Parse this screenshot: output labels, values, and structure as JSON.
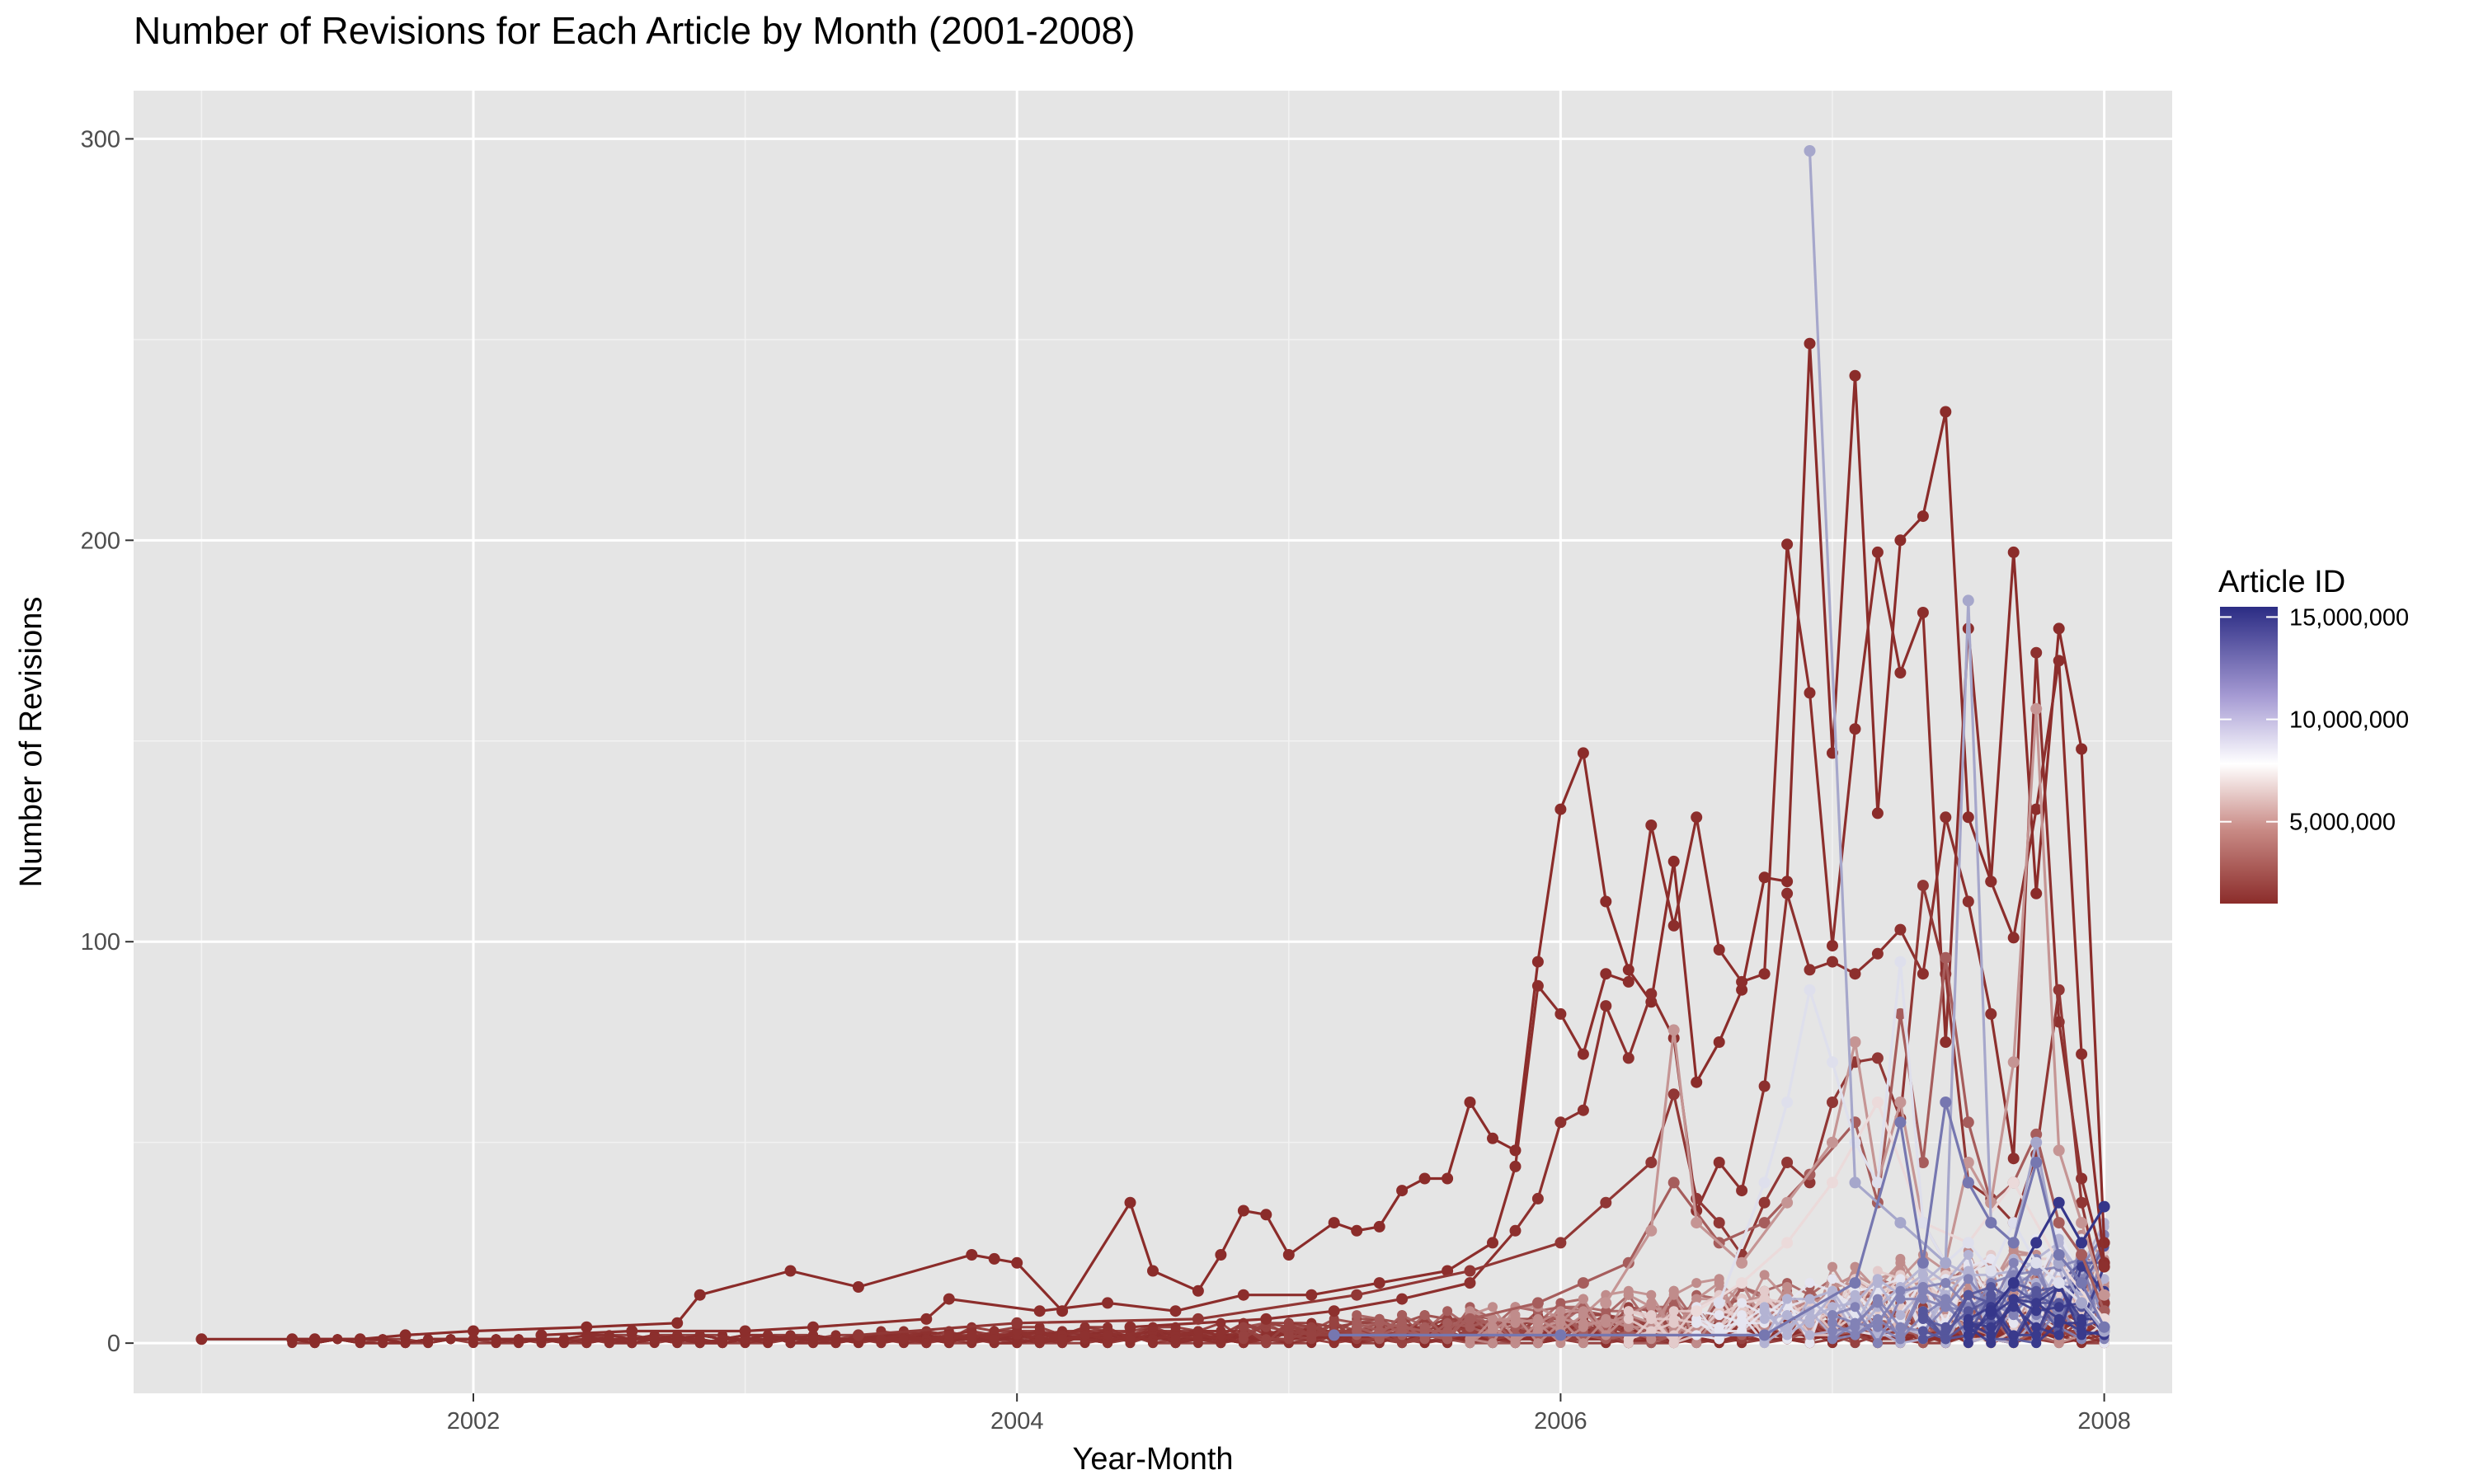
{
  "chart_data": {
    "type": "line",
    "title": "Number of Revisions for Each Article by Month (2001-2008)",
    "xlabel": "Year-Month",
    "ylabel": "Number of Revisions",
    "x_type": "date",
    "xlim": [
      "2000-10-01",
      "2008-04-01"
    ],
    "ylim": [
      -12.5,
      312
    ],
    "x_ticks": [
      "2002-01-01",
      "2004-01-01",
      "2006-01-01",
      "2008-01-01"
    ],
    "x_tick_labels": [
      "2002",
      "2004",
      "2006",
      "2008"
    ],
    "y_ticks": [
      0,
      100,
      200,
      300
    ],
    "y_tick_labels": [
      "0",
      "100",
      "200",
      "300"
    ],
    "panel_background": "#e5e5e5",
    "grid": true,
    "legend": {
      "title": "Article ID",
      "placement": "right",
      "type": "colorbar",
      "breaks": [
        5000000,
        10000000,
        15000000
      ],
      "break_labels": [
        "5,000,000",
        "10,000,000",
        "15,000,000"
      ],
      "range": [
        1000000,
        15500000
      ],
      "colors": [
        "#8b2c2a",
        "#ffffff",
        "#2b2c84"
      ]
    },
    "series": [
      {
        "id": 1100000,
        "points": [
          [
            "2001-01",
            "1"
          ],
          [
            "2001-05",
            "1"
          ],
          [
            "2001-06",
            "1"
          ],
          [
            "2001-08",
            "1"
          ],
          [
            "2001-10",
            "2"
          ],
          [
            "2002-01",
            "3"
          ],
          [
            "2002-06",
            "4"
          ],
          [
            "2002-10",
            "5"
          ],
          [
            "2002-11",
            "12"
          ],
          [
            "2003-03",
            "18"
          ],
          [
            "2003-06",
            "14"
          ],
          [
            "2003-11",
            "22"
          ],
          [
            "2003-12",
            "21"
          ],
          [
            "2004-01",
            "20"
          ],
          [
            "2004-03",
            "8"
          ],
          [
            "2004-06",
            "35"
          ],
          [
            "2004-07",
            "18"
          ],
          [
            "2004-09",
            "13"
          ],
          [
            "2004-10",
            "22"
          ],
          [
            "2004-11",
            "33"
          ],
          [
            "2004-12",
            "32"
          ],
          [
            "2005-01",
            "22"
          ],
          [
            "2005-03",
            "30"
          ],
          [
            "2005-04",
            "28"
          ],
          [
            "2005-05",
            "29"
          ],
          [
            "2005-06",
            "38"
          ],
          [
            "2005-07",
            "41"
          ],
          [
            "2005-08",
            "41"
          ],
          [
            "2005-09",
            "60"
          ],
          [
            "2005-10",
            "51"
          ],
          [
            "2005-11",
            "48"
          ],
          [
            "2005-12",
            "95"
          ],
          [
            "2006-01",
            "133"
          ],
          [
            "2006-02",
            "147"
          ],
          [
            "2006-03",
            "110"
          ],
          [
            "2006-04",
            "93"
          ],
          [
            "2006-05",
            "85"
          ],
          [
            "2006-06",
            "120"
          ],
          [
            "2006-07",
            "65"
          ],
          [
            "2006-08",
            "75"
          ],
          [
            "2006-09",
            "88"
          ],
          [
            "2006-10",
            "116"
          ],
          [
            "2006-11",
            "115"
          ],
          [
            "2006-12",
            "249"
          ],
          [
            "2007-01",
            "147"
          ],
          [
            "2007-02",
            "241"
          ],
          [
            "2007-03",
            "132"
          ],
          [
            "2007-04",
            "200"
          ],
          [
            "2007-05",
            "206"
          ],
          [
            "2007-06",
            "232"
          ],
          [
            "2007-07",
            "131"
          ],
          [
            "2007-08",
            "115"
          ],
          [
            "2007-09",
            "197"
          ],
          [
            "2007-10",
            "112"
          ],
          [
            "2007-11",
            "178"
          ],
          [
            "2007-12",
            "148"
          ],
          [
            "2008-01",
            "25"
          ]
        ]
      },
      {
        "id": 1300000,
        "points": [
          [
            "2002-04",
            "2"
          ],
          [
            "2002-08",
            "3"
          ],
          [
            "2003-01",
            "3"
          ],
          [
            "2003-04",
            "4"
          ],
          [
            "2003-09",
            "6"
          ],
          [
            "2003-10",
            "11"
          ],
          [
            "2004-02",
            "8"
          ],
          [
            "2004-05",
            "10"
          ],
          [
            "2004-08",
            "8"
          ],
          [
            "2004-11",
            "12"
          ],
          [
            "2005-02",
            "12"
          ],
          [
            "2005-05",
            "15"
          ],
          [
            "2005-08",
            "18"
          ],
          [
            "2005-10",
            "25"
          ],
          [
            "2005-11",
            "44"
          ],
          [
            "2005-12",
            "89"
          ],
          [
            "2006-01",
            "82"
          ],
          [
            "2006-02",
            "72"
          ],
          [
            "2006-03",
            "92"
          ],
          [
            "2006-04",
            "90"
          ],
          [
            "2006-05",
            "129"
          ],
          [
            "2006-06",
            "104"
          ],
          [
            "2006-07",
            "131"
          ],
          [
            "2006-08",
            "98"
          ],
          [
            "2006-09",
            "90"
          ],
          [
            "2006-10",
            "92"
          ],
          [
            "2006-11",
            "199"
          ],
          [
            "2006-12",
            "162"
          ],
          [
            "2007-01",
            "99"
          ],
          [
            "2007-02",
            "153"
          ],
          [
            "2007-03",
            "197"
          ],
          [
            "2007-04",
            "167"
          ],
          [
            "2007-05",
            "182"
          ],
          [
            "2007-06",
            "75"
          ],
          [
            "2007-07",
            "178"
          ],
          [
            "2007-08",
            "115"
          ],
          [
            "2007-09",
            "101"
          ],
          [
            "2007-10",
            "133"
          ],
          [
            "2007-11",
            "170"
          ],
          [
            "2007-12",
            "72"
          ],
          [
            "2008-01",
            "20"
          ]
        ]
      },
      {
        "id": 1500000,
        "points": [
          [
            "2004-06",
            "4"
          ],
          [
            "2004-12",
            "6"
          ],
          [
            "2005-03",
            "8"
          ],
          [
            "2005-06",
            "11"
          ],
          [
            "2005-09",
            "15"
          ],
          [
            "2005-11",
            "28"
          ],
          [
            "2005-12",
            "36"
          ],
          [
            "2006-01",
            "55"
          ],
          [
            "2006-02",
            "58"
          ],
          [
            "2006-03",
            "84"
          ],
          [
            "2006-04",
            "71"
          ],
          [
            "2006-05",
            "87"
          ],
          [
            "2006-06",
            "76"
          ],
          [
            "2006-07",
            "33"
          ],
          [
            "2006-08",
            "45"
          ],
          [
            "2006-09",
            "38"
          ],
          [
            "2006-10",
            "64"
          ],
          [
            "2006-11",
            "112"
          ],
          [
            "2006-12",
            "93"
          ],
          [
            "2007-01",
            "95"
          ],
          [
            "2007-02",
            "92"
          ],
          [
            "2007-03",
            "97"
          ],
          [
            "2007-04",
            "103"
          ],
          [
            "2007-05",
            "92"
          ],
          [
            "2007-06",
            "131"
          ],
          [
            "2007-07",
            "110"
          ],
          [
            "2007-08",
            "82"
          ],
          [
            "2007-09",
            "46"
          ],
          [
            "2007-10",
            "172"
          ],
          [
            "2007-11",
            "80"
          ],
          [
            "2007-12",
            "41"
          ],
          [
            "2008-01",
            "19"
          ]
        ]
      },
      {
        "id": 2000000,
        "points": [
          [
            "2003-06",
            "2"
          ],
          [
            "2004-01",
            "5"
          ],
          [
            "2004-09",
            "6"
          ],
          [
            "2005-04",
            "12"
          ],
          [
            "2005-09",
            "18"
          ],
          [
            "2006-01",
            "25"
          ],
          [
            "2006-03",
            "35"
          ],
          [
            "2006-05",
            "45"
          ],
          [
            "2006-06",
            "62"
          ],
          [
            "2006-07",
            "36"
          ],
          [
            "2006-08",
            "30"
          ],
          [
            "2006-09",
            "22"
          ],
          [
            "2006-10",
            "35"
          ],
          [
            "2006-11",
            "45"
          ],
          [
            "2006-12",
            "40"
          ],
          [
            "2007-01",
            "60"
          ],
          [
            "2007-02",
            "70"
          ],
          [
            "2007-03",
            "71"
          ],
          [
            "2007-04",
            "56"
          ],
          [
            "2007-05",
            "114"
          ],
          [
            "2007-06",
            "92"
          ],
          [
            "2007-07",
            "40"
          ],
          [
            "2007-08",
            "36"
          ],
          [
            "2007-09",
            "30"
          ],
          [
            "2007-10",
            "47"
          ],
          [
            "2007-11",
            "88"
          ],
          [
            "2007-12",
            "35"
          ],
          [
            "2008-01",
            "10"
          ]
        ]
      },
      {
        "id": 3500000,
        "points": [
          [
            "2005-09",
            "6"
          ],
          [
            "2005-12",
            "10"
          ],
          [
            "2006-02",
            "15"
          ],
          [
            "2006-04",
            "20"
          ],
          [
            "2006-06",
            "40"
          ],
          [
            "2006-08",
            "25"
          ],
          [
            "2006-10",
            "30"
          ],
          [
            "2006-12",
            "42"
          ],
          [
            "2007-02",
            "55"
          ],
          [
            "2007-03",
            "35"
          ],
          [
            "2007-04",
            "82"
          ],
          [
            "2007-05",
            "45"
          ],
          [
            "2007-06",
            "96"
          ],
          [
            "2007-07",
            "55"
          ],
          [
            "2007-08",
            "35"
          ],
          [
            "2007-09",
            "40"
          ],
          [
            "2007-10",
            "52"
          ],
          [
            "2007-11",
            "30"
          ],
          [
            "2007-12",
            "22"
          ],
          [
            "2008-01",
            "8"
          ]
        ]
      },
      {
        "id": 5000000,
        "points": [
          [
            "2006-03",
            "10"
          ],
          [
            "2006-05",
            "28"
          ],
          [
            "2006-06",
            "78"
          ],
          [
            "2006-07",
            "30"
          ],
          [
            "2006-09",
            "20"
          ],
          [
            "2006-11",
            "35"
          ],
          [
            "2007-01",
            "50"
          ],
          [
            "2007-02",
            "75"
          ],
          [
            "2007-03",
            "40"
          ],
          [
            "2007-04",
            "60"
          ],
          [
            "2007-05",
            "30"
          ],
          [
            "2007-06",
            "20"
          ],
          [
            "2007-07",
            "45"
          ],
          [
            "2007-08",
            "35"
          ],
          [
            "2007-09",
            "70"
          ],
          [
            "2007-10",
            "158"
          ],
          [
            "2007-11",
            "48"
          ],
          [
            "2007-12",
            "30"
          ],
          [
            "2008-01",
            "12"
          ]
        ]
      },
      {
        "id": 6500000,
        "points": [
          [
            "2006-07",
            "8"
          ],
          [
            "2006-09",
            "15"
          ],
          [
            "2006-11",
            "25"
          ],
          [
            "2007-01",
            "40"
          ],
          [
            "2007-03",
            "60"
          ],
          [
            "2007-05",
            "30"
          ],
          [
            "2007-07",
            "25"
          ],
          [
            "2007-09",
            "40"
          ],
          [
            "2007-11",
            "20"
          ],
          [
            "2008-01",
            "6"
          ]
        ]
      },
      {
        "id": 8000000,
        "points": [
          [
            "2006-08",
            "10"
          ],
          [
            "2006-10",
            "40"
          ],
          [
            "2006-11",
            "60"
          ],
          [
            "2006-12",
            "88"
          ],
          [
            "2007-01",
            "70"
          ],
          [
            "2007-02",
            "50"
          ],
          [
            "2007-03",
            "40"
          ],
          [
            "2007-04",
            "95"
          ],
          [
            "2007-05",
            "30"
          ],
          [
            "2007-06",
            "20"
          ],
          [
            "2007-07",
            "25"
          ],
          [
            "2007-08",
            "18"
          ],
          [
            "2007-09",
            "30"
          ],
          [
            "2007-10",
            "20"
          ],
          [
            "2007-11",
            "15"
          ],
          [
            "2007-12",
            "10"
          ],
          [
            "2008-01",
            "4"
          ]
        ]
      },
      {
        "id": 10000000,
        "points": [
          [
            "2006-12",
            "297"
          ],
          [
            "2007-02",
            "40"
          ],
          [
            "2007-04",
            "30"
          ],
          [
            "2007-06",
            "20"
          ],
          [
            "2007-07",
            "185"
          ],
          [
            "2007-08",
            "30"
          ],
          [
            "2007-09",
            "25"
          ],
          [
            "2007-10",
            "50"
          ],
          [
            "2007-11",
            "20"
          ],
          [
            "2007-12",
            "10"
          ],
          [
            "2008-01",
            "3"
          ]
        ]
      },
      {
        "id": 12000000,
        "points": [
          [
            "2005-03",
            "2"
          ],
          [
            "2006-01",
            "2"
          ],
          [
            "2006-10",
            "2"
          ],
          [
            "2007-02",
            "15"
          ],
          [
            "2007-04",
            "55"
          ],
          [
            "2007-05",
            "20"
          ],
          [
            "2007-06",
            "60"
          ],
          [
            "2007-07",
            "40"
          ],
          [
            "2007-08",
            "30"
          ],
          [
            "2007-09",
            "25"
          ],
          [
            "2007-10",
            "45"
          ],
          [
            "2007-11",
            "22"
          ],
          [
            "2007-12",
            "15"
          ],
          [
            "2008-01",
            "4"
          ]
        ]
      },
      {
        "id": 15000000,
        "points": [
          [
            "2007-08",
            "8"
          ],
          [
            "2007-09",
            "15"
          ],
          [
            "2007-10",
            "25"
          ],
          [
            "2007-11",
            "35"
          ],
          [
            "2007-12",
            "25"
          ],
          [
            "2008-01",
            "34"
          ]
        ]
      }
    ],
    "series_cluster": {
      "description_rule": "low-count revisions (0–40) per article per month, many articles"
    }
  }
}
